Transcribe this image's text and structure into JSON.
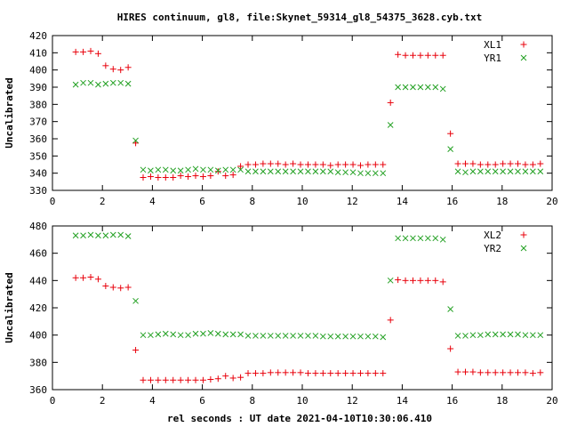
{
  "title": "HIRES continuum, gl8, file:Skynet_59314_gl8_54375_3628.cyb.txt",
  "xlabel": "rel seconds : UT date 2021-04-10T10:30:06.410",
  "colors": {
    "red": "#e8000b",
    "green": "#22a022",
    "axis": "#000000"
  },
  "chart_data": [
    {
      "type": "scatter",
      "ylabel": "Uncalibrated",
      "xlim": [
        0,
        20
      ],
      "ylim": [
        330,
        420
      ],
      "xticks": [
        0,
        2,
        4,
        6,
        8,
        10,
        12,
        14,
        16,
        18,
        20
      ],
      "yticks": [
        330,
        340,
        350,
        360,
        370,
        380,
        390,
        400,
        410,
        420
      ],
      "legend_position": "top-right",
      "series": [
        {
          "name": "XL1",
          "marker": "plus",
          "color": "#e8000b",
          "x": [
            0.93,
            1.23,
            1.53,
            1.83,
            2.13,
            2.43,
            2.73,
            3.03,
            3.33,
            3.63,
            3.93,
            4.23,
            4.53,
            4.83,
            5.13,
            5.43,
            5.73,
            6.03,
            6.33,
            6.63,
            6.93,
            7.23,
            7.53,
            7.83,
            8.13,
            8.43,
            8.73,
            9.03,
            9.33,
            9.63,
            9.93,
            10.23,
            10.53,
            10.83,
            11.13,
            11.43,
            11.73,
            12.03,
            12.33,
            12.63,
            12.93,
            13.23,
            13.53,
            13.83,
            14.13,
            14.43,
            14.73,
            15.03,
            15.33,
            15.63,
            15.93,
            16.23,
            16.53,
            16.83,
            17.13,
            17.43,
            17.73,
            18.03,
            18.33,
            18.63,
            18.93,
            19.23,
            19.53
          ],
          "y": [
            410.5,
            410.5,
            411,
            409.5,
            402.5,
            400.5,
            400,
            401.5,
            357.5,
            337.5,
            338,
            337.5,
            337.5,
            337.5,
            338.5,
            338,
            338.5,
            338,
            338.5,
            341,
            338.5,
            339,
            344,
            345,
            345,
            345.5,
            345.5,
            345.5,
            345,
            345.5,
            345,
            345,
            345,
            345,
            344.5,
            345,
            345,
            345,
            344.5,
            345,
            345,
            345,
            381,
            409,
            408.5,
            408.5,
            408.5,
            408.5,
            408.5,
            408.5,
            363,
            345.5,
            345.5,
            345.5,
            345,
            345,
            345,
            345.5,
            345.5,
            345.5,
            345,
            345,
            345.5
          ]
        },
        {
          "name": "YR1",
          "marker": "cross",
          "color": "#22a022",
          "x": [
            0.93,
            1.23,
            1.53,
            1.83,
            2.13,
            2.43,
            2.73,
            3.03,
            3.33,
            3.63,
            3.93,
            4.23,
            4.53,
            4.83,
            5.13,
            5.43,
            5.73,
            6.03,
            6.33,
            6.63,
            6.93,
            7.23,
            7.53,
            7.83,
            8.13,
            8.43,
            8.73,
            9.03,
            9.33,
            9.63,
            9.93,
            10.23,
            10.53,
            10.83,
            11.13,
            11.43,
            11.73,
            12.03,
            12.33,
            12.63,
            12.93,
            13.23,
            13.53,
            13.83,
            14.13,
            14.43,
            14.73,
            15.03,
            15.33,
            15.63,
            15.93,
            16.23,
            16.53,
            16.83,
            17.13,
            17.43,
            17.73,
            18.03,
            18.33,
            18.63,
            18.93,
            19.23,
            19.53
          ],
          "y": [
            391.5,
            392.5,
            392.5,
            391.5,
            392,
            392.5,
            392.5,
            392,
            359,
            342,
            341.5,
            342,
            342,
            341.5,
            341.5,
            342,
            342.5,
            342,
            342,
            341.5,
            342,
            342,
            342,
            341,
            341,
            341,
            341,
            341,
            341,
            341,
            341,
            341,
            341,
            341,
            341,
            340.5,
            340.5,
            340.5,
            340,
            340,
            340,
            340,
            368,
            390,
            390,
            390,
            390,
            390,
            390,
            389,
            354,
            341,
            340.5,
            341,
            341,
            341,
            341,
            341,
            341,
            341,
            341,
            341,
            341
          ]
        }
      ]
    },
    {
      "type": "scatter",
      "ylabel": "Uncalibrated",
      "xlim": [
        0,
        20
      ],
      "ylim": [
        360,
        480
      ],
      "xticks": [
        0,
        2,
        4,
        6,
        8,
        10,
        12,
        14,
        16,
        18,
        20
      ],
      "yticks": [
        360,
        380,
        400,
        420,
        440,
        460,
        480
      ],
      "legend_position": "top-right",
      "series": [
        {
          "name": "XL2",
          "marker": "plus",
          "color": "#e8000b",
          "x": [
            0.93,
            1.23,
            1.53,
            1.83,
            2.13,
            2.43,
            2.73,
            3.03,
            3.33,
            3.63,
            3.93,
            4.23,
            4.53,
            4.83,
            5.13,
            5.43,
            5.73,
            6.03,
            6.33,
            6.63,
            6.93,
            7.23,
            7.53,
            7.83,
            8.13,
            8.43,
            8.73,
            9.03,
            9.33,
            9.63,
            9.93,
            10.23,
            10.53,
            10.83,
            11.13,
            11.43,
            11.73,
            12.03,
            12.33,
            12.63,
            12.93,
            13.23,
            13.53,
            13.83,
            14.13,
            14.43,
            14.73,
            15.03,
            15.33,
            15.63,
            15.93,
            16.23,
            16.53,
            16.83,
            17.13,
            17.43,
            17.73,
            18.03,
            18.33,
            18.63,
            18.93,
            19.23,
            19.53
          ],
          "y": [
            442,
            442,
            442.5,
            441,
            436,
            435,
            434.5,
            435,
            389,
            367,
            367,
            367,
            367,
            367,
            367,
            367,
            367,
            367,
            367.5,
            368,
            370,
            368.5,
            369,
            372,
            372,
            372,
            372.5,
            372.5,
            372.5,
            372.5,
            372.5,
            372,
            372,
            372,
            372,
            372,
            372,
            372,
            372,
            372,
            372,
            372,
            411,
            440.5,
            440,
            440,
            440,
            440,
            440,
            439,
            390,
            373,
            373,
            373,
            372.5,
            372.5,
            372.5,
            372.5,
            372.5,
            372.5,
            372.5,
            372,
            372.5
          ]
        },
        {
          "name": "YR2",
          "marker": "cross",
          "color": "#22a022",
          "x": [
            0.93,
            1.23,
            1.53,
            1.83,
            2.13,
            2.43,
            2.73,
            3.03,
            3.33,
            3.63,
            3.93,
            4.23,
            4.53,
            4.83,
            5.13,
            5.43,
            5.73,
            6.03,
            6.33,
            6.63,
            6.93,
            7.23,
            7.53,
            7.83,
            8.13,
            8.43,
            8.73,
            9.03,
            9.33,
            9.63,
            9.93,
            10.23,
            10.53,
            10.83,
            11.13,
            11.43,
            11.73,
            12.03,
            12.33,
            12.63,
            12.93,
            13.23,
            13.53,
            13.83,
            14.13,
            14.43,
            14.73,
            15.03,
            15.33,
            15.63,
            15.93,
            16.23,
            16.53,
            16.83,
            17.13,
            17.43,
            17.73,
            18.03,
            18.33,
            18.63,
            18.93,
            19.23,
            19.53
          ],
          "y": [
            473,
            473,
            473.5,
            473,
            473,
            473.5,
            473.5,
            472.5,
            425,
            400,
            400,
            400.5,
            401,
            400.5,
            400,
            400,
            401,
            401,
            401.5,
            401,
            400.5,
            400.5,
            400.5,
            399.5,
            399.5,
            399.5,
            399.5,
            399.5,
            399.5,
            399.5,
            399.5,
            399.5,
            399.5,
            399,
            399,
            399,
            399,
            399,
            399,
            399,
            399,
            398.5,
            440,
            471,
            471,
            471,
            471,
            471,
            471,
            470,
            419,
            399.5,
            399.5,
            400,
            400,
            400.5,
            400.5,
            400.5,
            400.5,
            400.5,
            400,
            400,
            400
          ]
        }
      ]
    }
  ]
}
